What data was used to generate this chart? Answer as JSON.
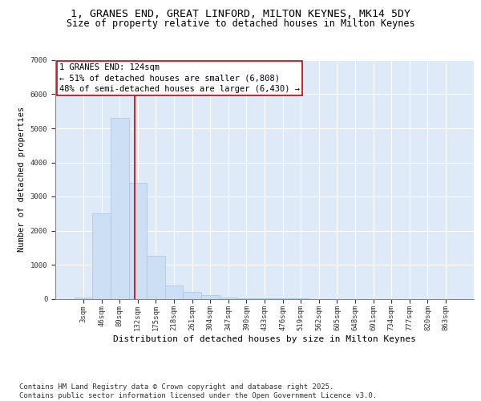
{
  "title_line1": "1, GRANES END, GREAT LINFORD, MILTON KEYNES, MK14 5DY",
  "title_line2": "Size of property relative to detached houses in Milton Keynes",
  "xlabel": "Distribution of detached houses by size in Milton Keynes",
  "ylabel": "Number of detached properties",
  "bar_color": "#ccdff5",
  "bar_edgecolor": "#aac4e0",
  "background_color": "#deeaf8",
  "grid_color": "#ffffff",
  "categories": [
    "3sqm",
    "46sqm",
    "89sqm",
    "132sqm",
    "175sqm",
    "218sqm",
    "261sqm",
    "304sqm",
    "347sqm",
    "390sqm",
    "433sqm",
    "476sqm",
    "519sqm",
    "562sqm",
    "605sqm",
    "648sqm",
    "691sqm",
    "734sqm",
    "777sqm",
    "820sqm",
    "863sqm"
  ],
  "values": [
    30,
    2500,
    5300,
    3400,
    1250,
    400,
    200,
    100,
    30,
    10,
    5,
    2,
    1,
    0,
    0,
    0,
    0,
    0,
    0,
    0,
    0
  ],
  "ylim": [
    0,
    7000
  ],
  "yticks": [
    0,
    1000,
    2000,
    3000,
    4000,
    5000,
    6000,
    7000
  ],
  "vline_color": "#cc0000",
  "annotation_text": "1 GRANES END: 124sqm\n← 51% of detached houses are smaller (6,808)\n48% of semi-detached houses are larger (6,430) →",
  "annotation_box_color": "#ffffff",
  "annotation_box_edgecolor": "#cc0000",
  "footnote": "Contains HM Land Registry data © Crown copyright and database right 2025.\nContains public sector information licensed under the Open Government Licence v3.0.",
  "title_fontsize": 9.5,
  "subtitle_fontsize": 8.5,
  "ylabel_fontsize": 7.5,
  "xlabel_fontsize": 8,
  "tick_fontsize": 6.5,
  "annotation_fontsize": 7.5,
  "footnote_fontsize": 6.5
}
